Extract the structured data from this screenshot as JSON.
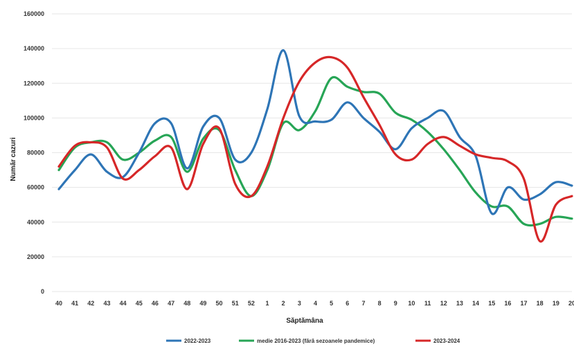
{
  "chart_data": {
    "type": "line",
    "xlabel": "Săptămâna",
    "ylabel": "Număr cazuri",
    "ylim": [
      0,
      160000
    ],
    "yticks": [
      0,
      20000,
      40000,
      60000,
      80000,
      100000,
      120000,
      140000,
      160000
    ],
    "ytick_labels": [
      "0",
      "20000",
      "40000",
      "60000",
      "80000",
      "100000",
      "120000",
      "140000",
      "160000"
    ],
    "grid": true,
    "legend_position": "bottom",
    "categories": [
      "40",
      "41",
      "42",
      "43",
      "44",
      "45",
      "46",
      "47",
      "48",
      "49",
      "50",
      "51",
      "52",
      "1",
      "2",
      "3",
      "4",
      "5",
      "6",
      "7",
      "8",
      "9",
      "10",
      "11",
      "12",
      "13",
      "14",
      "15",
      "16",
      "17",
      "18",
      "19",
      "20"
    ],
    "series": [
      {
        "name": "2022-2023",
        "color": "#2e75b6",
        "values": [
          59000,
          70000,
          79000,
          69000,
          66000,
          80000,
          97000,
          97000,
          71000,
          95000,
          100000,
          76000,
          80000,
          105000,
          139000,
          101000,
          98000,
          99000,
          109000,
          100000,
          92000,
          82000,
          94000,
          100000,
          104000,
          89000,
          78000,
          45000,
          60000,
          53000,
          56000,
          63000,
          61000
        ]
      },
      {
        "name": "medie 2016-2023 (fără sezoanele pandemice)",
        "color": "#27a556",
        "values": [
          70000,
          83000,
          86000,
          86000,
          76000,
          80000,
          87000,
          89000,
          69000,
          88000,
          93000,
          70000,
          55000,
          70000,
          97000,
          93000,
          104000,
          123000,
          118000,
          115000,
          114000,
          103000,
          99000,
          92000,
          82000,
          70000,
          57000,
          49000,
          49000,
          39000,
          39000,
          43000,
          42000
        ]
      },
      {
        "name": "2023-2024",
        "color": "#d62728",
        "values": [
          72000,
          84000,
          86000,
          83000,
          65000,
          70000,
          78000,
          83000,
          59000,
          85000,
          94000,
          62000,
          55000,
          72000,
          100000,
          121000,
          132000,
          135000,
          129000,
          112000,
          96000,
          79000,
          76000,
          85000,
          89000,
          84000,
          79000,
          77000,
          75000,
          65000,
          29000,
          50000,
          55000
        ]
      }
    ]
  }
}
